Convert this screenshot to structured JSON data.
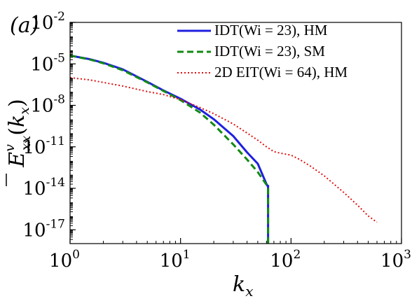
{
  "panel_label": "(a)",
  "chart_data": {
    "type": "line",
    "title": "",
    "xlabel": "k_x",
    "ylabel": "Ē^v_xx(k_x)",
    "xscale": "log",
    "yscale": "log",
    "xlim": [
      1,
      1000
    ],
    "ylim": [
      1e-18,
      0.01
    ],
    "x_ticks": [
      {
        "base": "10",
        "exp": "0",
        "value": 1
      },
      {
        "base": "10",
        "exp": "1",
        "value": 10
      },
      {
        "base": "10",
        "exp": "2",
        "value": 100
      },
      {
        "base": "10",
        "exp": "3",
        "value": 1000
      }
    ],
    "y_ticks": [
      {
        "base": "10",
        "exp": "-17",
        "value": 1e-17
      },
      {
        "base": "10",
        "exp": "-14",
        "value": 1e-14
      },
      {
        "base": "10",
        "exp": "-11",
        "value": 1e-11
      },
      {
        "base": "10",
        "exp": "-8",
        "value": 1e-08
      },
      {
        "base": "10",
        "exp": "-5",
        "value": 1e-05
      },
      {
        "base": "10",
        "exp": "-2",
        "value": 0.01
      }
    ],
    "grid": false,
    "legend_position": "top-right",
    "series": [
      {
        "name": "IDT(Wi = 23), HM",
        "color": "#1f1fe0",
        "style": "solid",
        "x": [
          1,
          1.5,
          2,
          3,
          5,
          7,
          10,
          15,
          20,
          30,
          40,
          50,
          60,
          62,
          62,
          62
        ],
        "y": [
          4e-05,
          2.2e-05,
          1.2e-05,
          4e-06,
          5e-07,
          1.2e-07,
          3e-08,
          5e-09,
          1e-09,
          6e-11,
          4e-12,
          6e-13,
          2e-14,
          1.3e-14,
          1.5e-14,
          1e-18
        ]
      },
      {
        "name": "IDT(Wi = 23), SM",
        "color": "#128a12",
        "style": "dashed",
        "x": [
          1,
          1.5,
          2,
          3,
          5,
          7,
          10,
          15,
          20,
          30,
          40,
          50,
          60,
          62,
          62
        ],
        "y": [
          4e-05,
          2.1e-05,
          1.1e-05,
          3.5e-06,
          4.6e-07,
          1.1e-07,
          2.4e-08,
          3e-09,
          4e-10,
          1.5e-11,
          1.2e-12,
          1.5e-13,
          1.8e-14,
          1.2e-14,
          1e-18
        ]
      },
      {
        "name": "2D EIT(Wi = 64), HM",
        "color": "#e01010",
        "style": "dotted",
        "x": [
          1,
          1.5,
          2,
          3,
          5,
          7,
          10,
          15,
          20,
          30,
          40,
          50,
          60,
          70,
          80,
          100,
          120,
          150,
          200,
          300,
          400,
          500,
          600
        ],
        "y": [
          1e-06,
          7e-07,
          4.5e-07,
          2.5e-07,
          1e-07,
          6e-08,
          2.6e-08,
          7e-09,
          2.5e-09,
          4.5e-10,
          1e-10,
          3e-11,
          1e-11,
          4.5e-12,
          3.5e-12,
          2.5e-12,
          1.2e-12,
          4e-13,
          8e-14,
          5e-15,
          6e-16,
          1e-16,
          3.5e-17
        ]
      }
    ]
  }
}
